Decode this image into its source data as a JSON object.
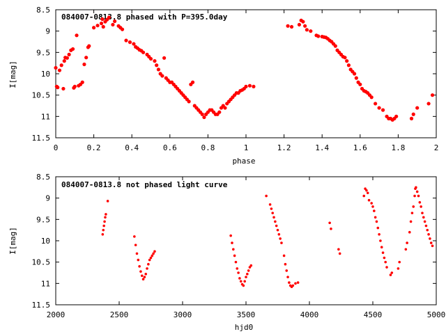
{
  "chart_data": [
    {
      "type": "scatter",
      "title": "084007-0813.8 phased with P=395.0day",
      "xlabel": "phase",
      "ylabel": "I[mag]",
      "xlim": [
        0,
        2
      ],
      "ylim": [
        11.5,
        8.5
      ],
      "y_inverted": true,
      "xticks": [
        "0",
        "0.2",
        "0.4",
        "0.6",
        "0.8",
        "1",
        "1.2",
        "1.4",
        "1.6",
        "1.8",
        "2"
      ],
      "yticks": [
        "8.5",
        "9",
        "9.5",
        "10",
        "10.5",
        "11",
        "11.5"
      ],
      "marker_color": "#ff0000",
      "grid": false,
      "series": [
        {
          "points": [
            [
              0.0,
              9.86
            ],
            [
              0.005,
              10.3
            ],
            [
              0.01,
              10.32
            ],
            [
              0.02,
              9.92
            ],
            [
              0.03,
              9.8
            ],
            [
              0.04,
              10.35
            ],
            [
              0.045,
              9.7
            ],
            [
              0.05,
              9.62
            ],
            [
              0.06,
              9.63
            ],
            [
              0.07,
              9.55
            ],
            [
              0.08,
              9.45
            ],
            [
              0.09,
              9.42
            ],
            [
              0.095,
              10.33
            ],
            [
              0.1,
              10.3
            ],
            [
              0.11,
              9.1
            ],
            [
              0.12,
              10.28
            ],
            [
              0.13,
              10.25
            ],
            [
              0.14,
              10.2
            ],
            [
              0.15,
              9.78
            ],
            [
              0.16,
              9.62
            ],
            [
              0.17,
              9.38
            ],
            [
              0.175,
              9.35
            ],
            [
              0.2,
              8.92
            ],
            [
              0.22,
              8.87
            ],
            [
              0.24,
              8.82
            ],
            [
              0.245,
              8.72
            ],
            [
              0.25,
              8.9
            ],
            [
              0.26,
              8.78
            ],
            [
              0.27,
              8.73
            ],
            [
              0.28,
              8.68
            ],
            [
              0.3,
              8.85
            ],
            [
              0.31,
              8.77
            ],
            [
              0.33,
              8.88
            ],
            [
              0.34,
              8.92
            ],
            [
              0.35,
              8.96
            ],
            [
              0.37,
              9.22
            ],
            [
              0.39,
              9.26
            ],
            [
              0.41,
              9.3
            ],
            [
              0.42,
              9.37
            ],
            [
              0.43,
              9.4
            ],
            [
              0.44,
              9.44
            ],
            [
              0.45,
              9.46
            ],
            [
              0.46,
              9.5
            ],
            [
              0.48,
              9.55
            ],
            [
              0.49,
              9.6
            ],
            [
              0.5,
              9.65
            ],
            [
              0.52,
              9.7
            ],
            [
              0.53,
              9.8
            ],
            [
              0.54,
              9.9
            ],
            [
              0.55,
              10.0
            ],
            [
              0.56,
              10.05
            ],
            [
              0.57,
              9.63
            ],
            [
              0.58,
              10.1
            ],
            [
              0.59,
              10.15
            ],
            [
              0.6,
              10.2
            ],
            [
              0.61,
              10.2
            ],
            [
              0.62,
              10.25
            ],
            [
              0.63,
              10.3
            ],
            [
              0.64,
              10.35
            ],
            [
              0.65,
              10.4
            ],
            [
              0.66,
              10.45
            ],
            [
              0.67,
              10.5
            ],
            [
              0.68,
              10.55
            ],
            [
              0.69,
              10.6
            ],
            [
              0.7,
              10.65
            ],
            [
              0.71,
              10.25
            ],
            [
              0.72,
              10.2
            ],
            [
              0.73,
              10.75
            ],
            [
              0.74,
              10.8
            ],
            [
              0.75,
              10.85
            ],
            [
              0.76,
              10.9
            ],
            [
              0.77,
              10.95
            ],
            [
              0.78,
              11.02
            ],
            [
              0.79,
              10.95
            ],
            [
              0.8,
              10.9
            ],
            [
              0.81,
              10.85
            ],
            [
              0.82,
              10.85
            ],
            [
              0.83,
              10.9
            ],
            [
              0.84,
              10.95
            ],
            [
              0.85,
              10.95
            ],
            [
              0.86,
              10.9
            ],
            [
              0.87,
              10.8
            ],
            [
              0.88,
              10.75
            ],
            [
              0.89,
              10.8
            ],
            [
              0.9,
              10.7
            ],
            [
              0.91,
              10.65
            ],
            [
              0.92,
              10.6
            ],
            [
              0.93,
              10.55
            ],
            [
              0.94,
              10.5
            ],
            [
              0.95,
              10.45
            ],
            [
              0.96,
              10.45
            ],
            [
              0.97,
              10.4
            ],
            [
              0.98,
              10.38
            ],
            [
              0.99,
              10.35
            ],
            [
              1.0,
              10.3
            ],
            [
              1.02,
              10.28
            ],
            [
              1.04,
              10.3
            ],
            [
              1.22,
              8.88
            ],
            [
              1.24,
              8.9
            ],
            [
              1.28,
              8.85
            ],
            [
              1.29,
              8.75
            ],
            [
              1.3,
              8.78
            ],
            [
              1.31,
              8.88
            ],
            [
              1.32,
              8.97
            ],
            [
              1.34,
              9.0
            ],
            [
              1.37,
              9.1
            ],
            [
              1.38,
              9.12
            ],
            [
              1.4,
              9.13
            ],
            [
              1.41,
              9.14
            ],
            [
              1.42,
              9.15
            ],
            [
              1.43,
              9.18
            ],
            [
              1.44,
              9.22
            ],
            [
              1.45,
              9.25
            ],
            [
              1.46,
              9.3
            ],
            [
              1.47,
              9.35
            ],
            [
              1.48,
              9.45
            ],
            [
              1.49,
              9.5
            ],
            [
              1.5,
              9.55
            ],
            [
              1.51,
              9.6
            ],
            [
              1.52,
              9.62
            ],
            [
              1.53,
              9.7
            ],
            [
              1.54,
              9.8
            ],
            [
              1.55,
              9.9
            ],
            [
              1.56,
              9.95
            ],
            [
              1.57,
              10.0
            ],
            [
              1.58,
              10.1
            ],
            [
              1.59,
              10.2
            ],
            [
              1.6,
              10.25
            ],
            [
              1.61,
              10.35
            ],
            [
              1.62,
              10.4
            ],
            [
              1.63,
              10.42
            ],
            [
              1.64,
              10.45
            ],
            [
              1.65,
              10.5
            ],
            [
              1.66,
              10.55
            ],
            [
              1.68,
              10.7
            ],
            [
              1.7,
              10.8
            ],
            [
              1.72,
              10.85
            ],
            [
              1.74,
              11.0
            ],
            [
              1.75,
              11.05
            ],
            [
              1.76,
              11.05
            ],
            [
              1.77,
              11.08
            ],
            [
              1.78,
              11.05
            ],
            [
              1.79,
              11.0
            ],
            [
              1.87,
              11.05
            ],
            [
              1.88,
              10.95
            ],
            [
              1.9,
              10.8
            ],
            [
              1.96,
              10.7
            ],
            [
              1.98,
              10.5
            ]
          ]
        }
      ]
    },
    {
      "type": "scatter",
      "title": "084007-0813.8 not phased light curve",
      "xlabel": "hjd0",
      "ylabel": "I[mag]",
      "xlim": [
        2000,
        5000
      ],
      "ylim": [
        11.5,
        8.5
      ],
      "y_inverted": true,
      "xticks": [
        "2000",
        "2500",
        "3000",
        "3500",
        "4000",
        "4500",
        "5000"
      ],
      "yticks": [
        "8.5",
        "9",
        "9.5",
        "10",
        "10.5",
        "11",
        "11.5"
      ],
      "marker_color": "#ff0000",
      "grid": false,
      "series": [
        {
          "points": [
            [
              2370,
              9.85
            ],
            [
              2375,
              9.75
            ],
            [
              2380,
              9.65
            ],
            [
              2385,
              9.55
            ],
            [
              2390,
              9.45
            ],
            [
              2395,
              9.38
            ],
            [
              2410,
              9.07
            ],
            [
              2620,
              9.9
            ],
            [
              2630,
              10.1
            ],
            [
              2640,
              10.3
            ],
            [
              2650,
              10.45
            ],
            [
              2660,
              10.6
            ],
            [
              2670,
              10.72
            ],
            [
              2680,
              10.82
            ],
            [
              2690,
              10.9
            ],
            [
              2700,
              10.85
            ],
            [
              2710,
              10.78
            ],
            [
              2720,
              10.65
            ],
            [
              2730,
              10.55
            ],
            [
              2740,
              10.45
            ],
            [
              2750,
              10.4
            ],
            [
              2760,
              10.35
            ],
            [
              2770,
              10.3
            ],
            [
              2780,
              10.25
            ],
            [
              3380,
              9.88
            ],
            [
              3390,
              10.05
            ],
            [
              3400,
              10.2
            ],
            [
              3410,
              10.35
            ],
            [
              3420,
              10.5
            ],
            [
              3430,
              10.65
            ],
            [
              3440,
              10.75
            ],
            [
              3450,
              10.88
            ],
            [
              3460,
              10.95
            ],
            [
              3470,
              11.02
            ],
            [
              3480,
              11.05
            ],
            [
              3490,
              10.95
            ],
            [
              3500,
              10.85
            ],
            [
              3510,
              10.78
            ],
            [
              3520,
              10.7
            ],
            [
              3530,
              10.62
            ],
            [
              3540,
              10.58
            ],
            [
              3660,
              8.95
            ],
            [
              3690,
              9.15
            ],
            [
              3700,
              9.25
            ],
            [
              3710,
              9.35
            ],
            [
              3720,
              9.45
            ],
            [
              3730,
              9.55
            ],
            [
              3740,
              9.65
            ],
            [
              3750,
              9.75
            ],
            [
              3760,
              9.85
            ],
            [
              3770,
              9.95
            ],
            [
              3780,
              10.05
            ],
            [
              3800,
              10.35
            ],
            [
              3810,
              10.55
            ],
            [
              3820,
              10.7
            ],
            [
              3830,
              10.85
            ],
            [
              3840,
              10.98
            ],
            [
              3850,
              11.05
            ],
            [
              3860,
              11.08
            ],
            [
              3870,
              11.05
            ],
            [
              3890,
              11.0
            ],
            [
              3910,
              10.98
            ],
            [
              4160,
              9.58
            ],
            [
              4170,
              9.72
            ],
            [
              4230,
              10.2
            ],
            [
              4240,
              10.3
            ],
            [
              4430,
              8.95
            ],
            [
              4440,
              8.78
            ],
            [
              4450,
              8.82
            ],
            [
              4460,
              8.88
            ],
            [
              4470,
              9.05
            ],
            [
              4490,
              9.12
            ],
            [
              4500,
              9.2
            ],
            [
              4510,
              9.3
            ],
            [
              4520,
              9.45
            ],
            [
              4530,
              9.55
            ],
            [
              4540,
              9.7
            ],
            [
              4550,
              9.85
            ],
            [
              4560,
              10.0
            ],
            [
              4570,
              10.15
            ],
            [
              4580,
              10.28
            ],
            [
              4590,
              10.4
            ],
            [
              4600,
              10.5
            ],
            [
              4610,
              10.62
            ],
            [
              4640,
              10.8
            ],
            [
              4650,
              10.75
            ],
            [
              4700,
              10.65
            ],
            [
              4710,
              10.5
            ],
            [
              4760,
              10.2
            ],
            [
              4770,
              10.05
            ],
            [
              4790,
              9.8
            ],
            [
              4800,
              9.55
            ],
            [
              4810,
              9.35
            ],
            [
              4820,
              9.2
            ],
            [
              4830,
              8.95
            ],
            [
              4835,
              8.78
            ],
            [
              4840,
              8.75
            ],
            [
              4850,
              8.85
            ],
            [
              4860,
              8.95
            ],
            [
              4870,
              9.1
            ],
            [
              4880,
              9.2
            ],
            [
              4890,
              9.35
            ],
            [
              4900,
              9.45
            ],
            [
              4910,
              9.55
            ],
            [
              4920,
              9.65
            ],
            [
              4930,
              9.75
            ],
            [
              4940,
              9.85
            ],
            [
              4950,
              9.95
            ],
            [
              4960,
              10.05
            ],
            [
              4970,
              10.12
            ]
          ]
        }
      ]
    }
  ]
}
